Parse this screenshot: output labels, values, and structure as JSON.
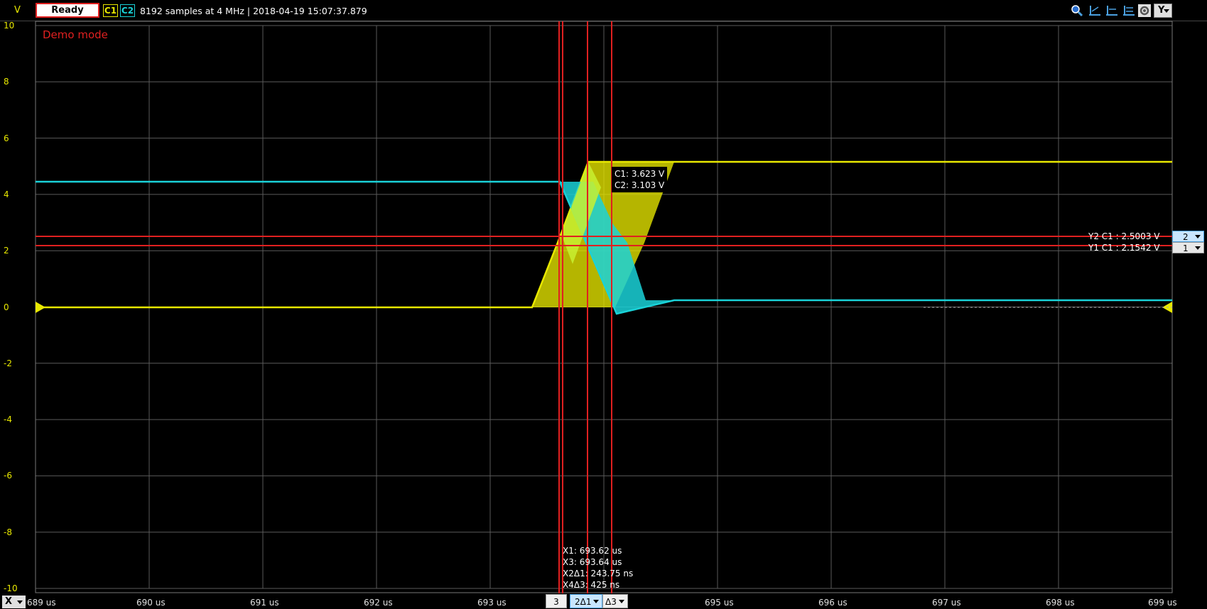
{
  "toolbar": {
    "unit": "V",
    "status": "Ready",
    "channels": [
      {
        "label": "C1",
        "color": "#e8e800"
      },
      {
        "label": "C2",
        "color": "#1ad2d8"
      }
    ],
    "info": "8192 samples at 4 MHz | 2018-04-19 15:07:37.879",
    "icons": [
      "zoom-icon",
      "cursor-icon",
      "cursor-icon",
      "cursor-icon",
      "settings-icon"
    ],
    "axis_select": "Y"
  },
  "plot": {
    "mode_text": "Demo mode",
    "y_ticks": [
      "10",
      "8",
      "6",
      "4",
      "2",
      "0",
      "-2",
      "-4",
      "-6",
      "-8",
      "-10"
    ],
    "x_ticks": [
      "689 us",
      "690 us",
      "691 us",
      "692 us",
      "693 us",
      "694 us",
      "695 us",
      "696 us",
      "697 us",
      "698 us",
      "699 us"
    ],
    "colors": {
      "c1": "#e8e800",
      "c2": "#1ad2d8",
      "cursor": "#e02020",
      "grid": "#5a5a5a"
    }
  },
  "y_cursors": {
    "y2": {
      "label": "Y2 C1 : 2.5003 V",
      "index": "2"
    },
    "y1": {
      "label": "Y1 C1 : 2.1542 V",
      "index": "1"
    }
  },
  "cursor_values": {
    "c1": "C1: 3.623 V",
    "c2": "C2: 3.103 V"
  },
  "x_cursor_readouts": [
    "X1: 693.62 us",
    "X3: 693.64 us",
    "X2Δ1: 243.75 ns",
    "X4Δ3: 425 ns"
  ],
  "bottom": {
    "axis": "X",
    "cursor_boxes": [
      "3",
      "2Δ1",
      "Δ3"
    ]
  }
}
